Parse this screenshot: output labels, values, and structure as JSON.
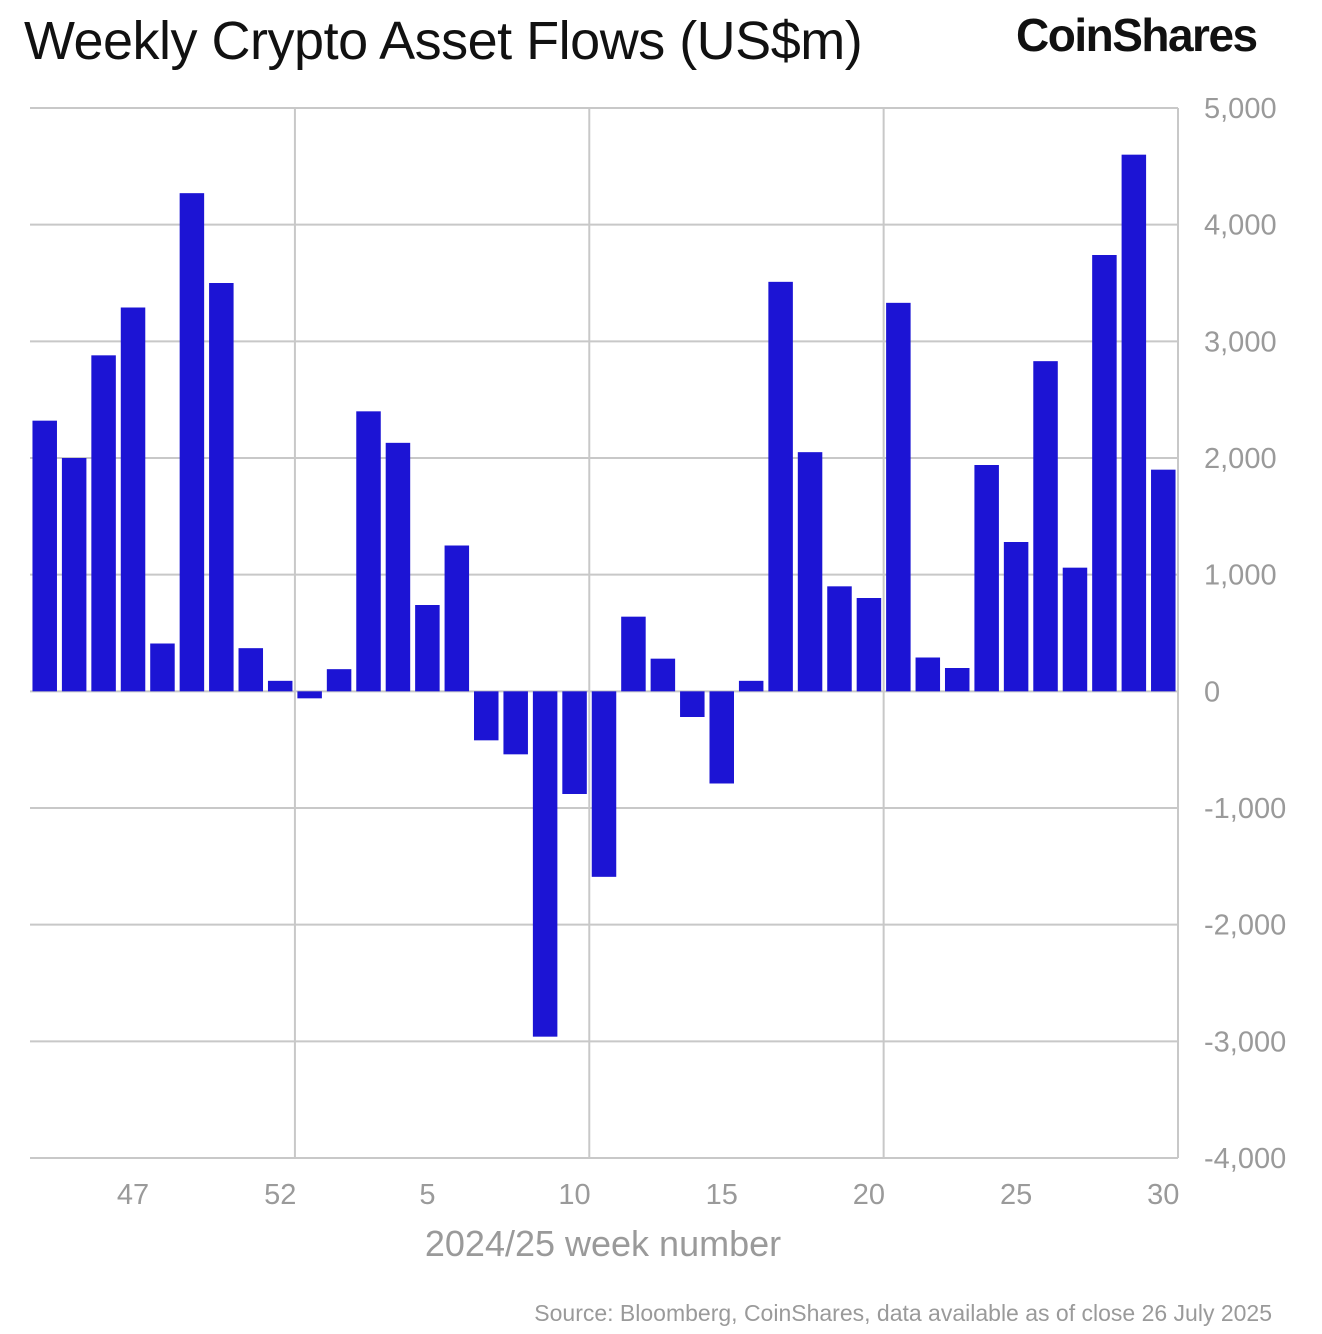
{
  "title": "Weekly Crypto Asset Flows (US$m)",
  "logo": "CoinShares",
  "source": "Source: Bloomberg, CoinShares, data available as of close 26 July 2025",
  "chart_data": {
    "type": "bar",
    "title": "Weekly Crypto Asset Flows (US$m)",
    "xlabel": "2024/25 week number",
    "ylabel": "",
    "ylim": [
      -4000,
      5000
    ],
    "yticks": [
      5000,
      4000,
      3000,
      2000,
      1000,
      0,
      -1000,
      -2000,
      -3000,
      -4000
    ],
    "ytick_labels": [
      "5,000",
      "4,000",
      "3,000",
      "2,000",
      "1,000",
      "0",
      "-1,000",
      "-2,000",
      "-3,000",
      "-4,000"
    ],
    "y_axis_position": "right",
    "grid": true,
    "bar_color": "#1c14d4",
    "categories": [
      "44",
      "45",
      "46",
      "47",
      "48",
      "49",
      "50",
      "51",
      "52",
      "1",
      "2",
      "3",
      "4",
      "5",
      "6",
      "7",
      "8",
      "9",
      "10",
      "11",
      "12",
      "13",
      "14",
      "15",
      "16",
      "17",
      "18",
      "19",
      "20",
      "21",
      "22",
      "23",
      "24",
      "25",
      "26",
      "27",
      "28",
      "29",
      "30"
    ],
    "xtick_labels": [
      "47",
      "52",
      "5",
      "10",
      "15",
      "20",
      "25",
      "30"
    ],
    "values": [
      2320,
      2000,
      2880,
      3290,
      410,
      4270,
      3500,
      370,
      90,
      -60,
      190,
      2400,
      2130,
      740,
      1250,
      -420,
      -540,
      -2960,
      -880,
      -1590,
      640,
      280,
      -220,
      -790,
      90,
      3510,
      2050,
      900,
      800,
      3330,
      290,
      200,
      1940,
      1280,
      2830,
      1060,
      3740,
      4600,
      1900
    ]
  }
}
